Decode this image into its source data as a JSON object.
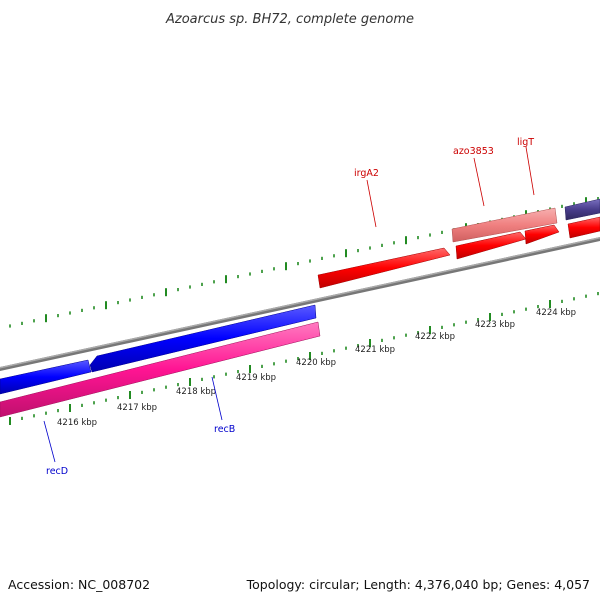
{
  "title": "Azoarcus sp. BH72, complete genome",
  "footer": {
    "accession": "Accession: NC_008702",
    "summary": "Topology: circular; Length: 4,376,040 bp; Genes: 4,057"
  },
  "kbp_labels": [
    "4216 kbp",
    "4217 kbp",
    "4218 kbp",
    "4219 kbp",
    "4220 kbp",
    "4221 kbp",
    "4222 kbp",
    "4223 kbp",
    "4224 kbp"
  ],
  "genes": {
    "recD": "recD",
    "recB": "recB",
    "irgA2": "irgA2",
    "azo3853": "azo3853",
    "ligT": "ligT"
  },
  "colors": {
    "backbone": "#888888",
    "forward_gene": "#ff0000",
    "forward_gene_light": "#f08080",
    "reverse_gene": "#0000ff",
    "reverse_gene_magenta": "#ff1493",
    "purple_gene": "#483d8b",
    "tick": "#228b22"
  }
}
